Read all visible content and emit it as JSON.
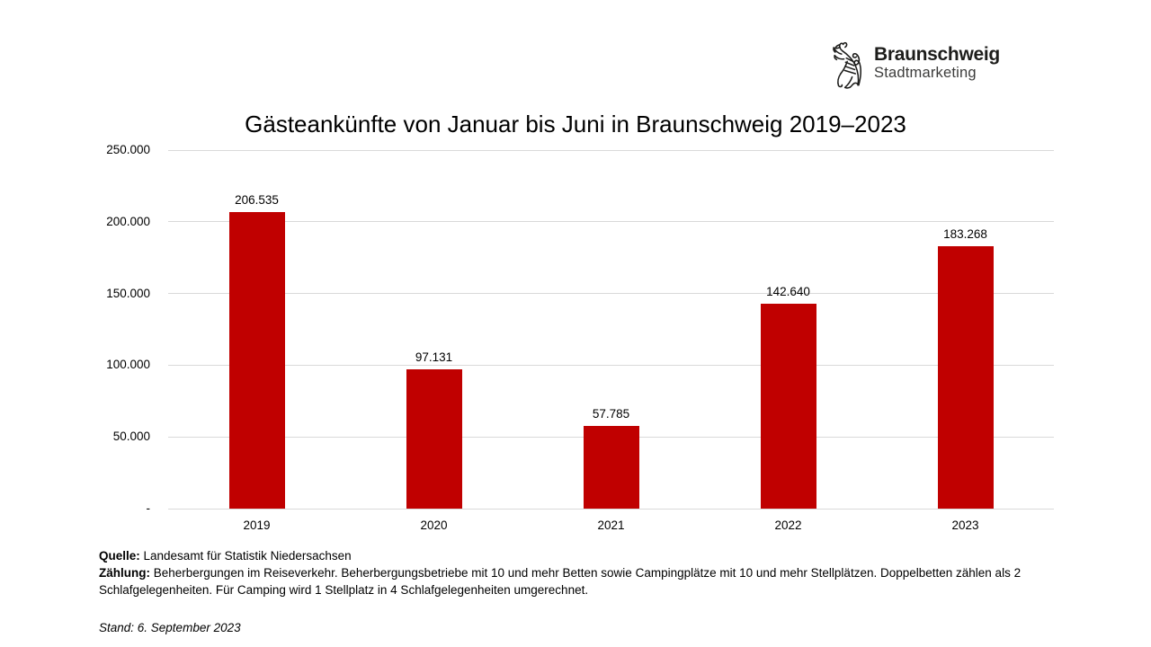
{
  "logo": {
    "brand": "Braunschweig",
    "subtitle": "Stadtmarketing",
    "brand_color": "#1d1d1b",
    "subtitle_color": "#3c3c3b",
    "lion_icon": "braunschweig-lion-icon"
  },
  "chart_data": {
    "type": "bar",
    "title": "Gästeankünfte von Januar bis Juni in Braunschweig 2019–2023",
    "categories": [
      "2019",
      "2020",
      "2021",
      "2022",
      "2023"
    ],
    "values": [
      206535,
      97131,
      57785,
      142640,
      183268
    ],
    "value_labels": [
      "206.535",
      "97.131",
      "57.785",
      "142.640",
      "183.268"
    ],
    "y_ticks": [
      250000,
      200000,
      150000,
      100000,
      50000,
      0
    ],
    "y_tick_labels": [
      "250.000",
      "200.000",
      "150.000",
      "100.000",
      "50.000",
      "-"
    ],
    "ylim": [
      0,
      250000
    ],
    "xlabel": "",
    "ylabel": "",
    "grid": true,
    "legend": "none",
    "bar_color": "#c00000",
    "gridline_color": "#d9d9d9"
  },
  "footer": {
    "source_label": "Quelle:",
    "source_text": " Landesamt für Statistik Niedersachsen",
    "census_label": "Zählung:",
    "census_text": " Beherbergungen im Reiseverkehr. Beherbergungsbetriebe mit 10 und mehr Betten sowie Campingplätze mit 10 und mehr Stellplätzen. Doppelbetten zählen als 2 Schlafgelegenheiten. Für Camping wird 1 Stellplatz in 4 Schlafgelegenheiten umgerechnet.",
    "stand_text": "Stand: 6. September 2023"
  }
}
